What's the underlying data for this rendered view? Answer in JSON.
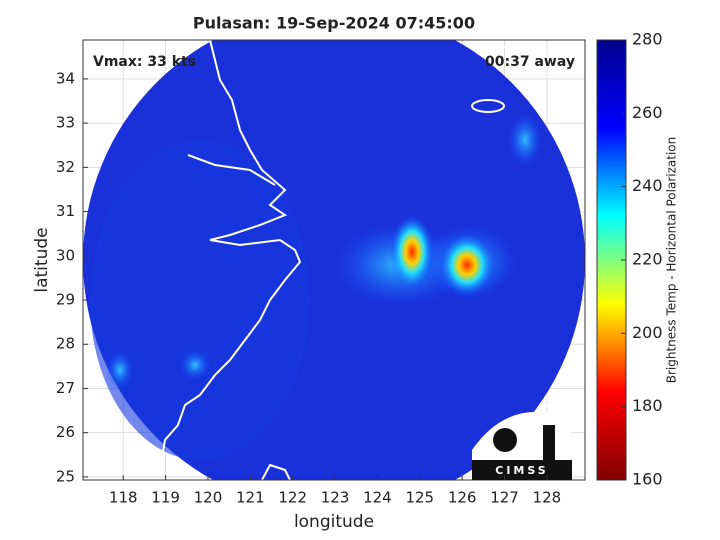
{
  "chart_data": {
    "type": "map",
    "title": "Pulasan: 19-Sep-2024 07:45:00",
    "xlabel": "longitude",
    "ylabel": "latitude",
    "xlim": [
      117.05,
      128.9
    ],
    "ylim": [
      24.93,
      34.88
    ],
    "xticks": [
      118,
      119,
      120,
      121,
      122,
      123,
      124,
      125,
      126,
      127,
      128
    ],
    "yticks": [
      25,
      26,
      27,
      28,
      29,
      30,
      31,
      32,
      33,
      34
    ],
    "grid": true,
    "annotations": [
      "Vmax: 33 kts",
      "00:37 away"
    ],
    "logo": "CIMSS",
    "colorbar": {
      "label": "Brightness Temp - Horizontal Polarization",
      "lim": [
        160,
        280
      ],
      "ticks": [
        160,
        180,
        200,
        220,
        240,
        260,
        280
      ],
      "colormap": [
        "#800000",
        "#ff0000",
        "#ffff00",
        "#00ffff",
        "#0000ff",
        "#00008f"
      ]
    }
  }
}
